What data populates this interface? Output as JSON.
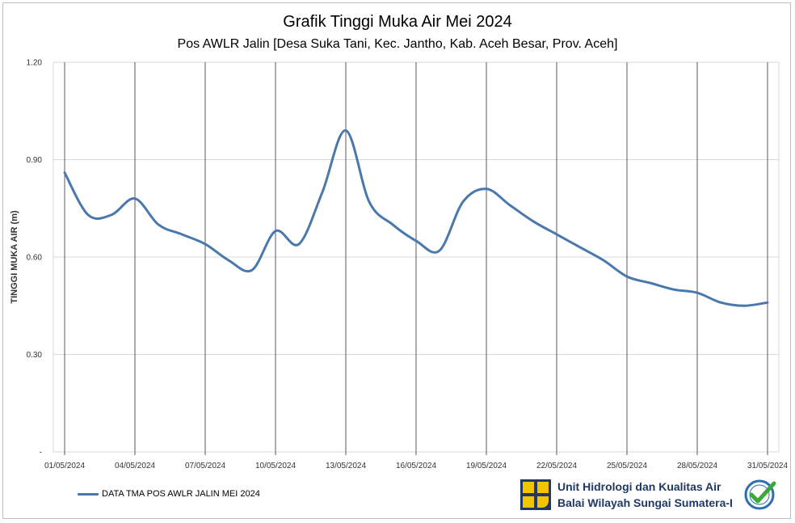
{
  "chart_data": {
    "type": "line",
    "title": "Grafik Tinggi Muka Air Mei 2024",
    "subtitle": "Pos AWLR Jalin [Desa Suka Tani, Kec. Jantho, Kab. Aceh Besar, Prov. Aceh]",
    "xlabel": "",
    "ylabel": "TINGGI MUKA AIR (m)",
    "ylim": [
      0,
      1.2
    ],
    "yticks": [
      {
        "value": 0,
        "label": "-"
      },
      {
        "value": 0.3,
        "label": "0.30"
      },
      {
        "value": 0.6,
        "label": "0.60"
      },
      {
        "value": 0.9,
        "label": "0.90"
      },
      {
        "value": 1.2,
        "label": "1.20"
      }
    ],
    "xlim": [
      "2024-05-01",
      "2024-05-31"
    ],
    "xticks": [
      "01/05/2024",
      "04/05/2024",
      "07/05/2024",
      "10/05/2024",
      "13/05/2024",
      "16/05/2024",
      "19/05/2024",
      "22/05/2024",
      "25/05/2024",
      "28/05/2024",
      "31/05/2024"
    ],
    "grid": "horizontal and vertical",
    "legend_position": "bottom-left",
    "colors": {
      "line": "#4a78ad",
      "grid_h": "#d9d9d9",
      "grid_v": "#595959"
    },
    "series": [
      {
        "name": "DATA TMA POS AWLR JALIN MEI 2024",
        "x": [
          "2024-05-01",
          "2024-05-02",
          "2024-05-03",
          "2024-05-04",
          "2024-05-05",
          "2024-05-06",
          "2024-05-07",
          "2024-05-08",
          "2024-05-09",
          "2024-05-10",
          "2024-05-11",
          "2024-05-12",
          "2024-05-13",
          "2024-05-14",
          "2024-05-15",
          "2024-05-16",
          "2024-05-17",
          "2024-05-18",
          "2024-05-19",
          "2024-05-20",
          "2024-05-21",
          "2024-05-22",
          "2024-05-23",
          "2024-05-24",
          "2024-05-25",
          "2024-05-26",
          "2024-05-27",
          "2024-05-28",
          "2024-05-29",
          "2024-05-30",
          "2024-05-31"
        ],
        "values": [
          0.86,
          0.73,
          0.73,
          0.78,
          0.7,
          0.67,
          0.64,
          0.59,
          0.56,
          0.68,
          0.64,
          0.8,
          0.99,
          0.77,
          0.7,
          0.65,
          0.62,
          0.77,
          0.81,
          0.76,
          0.71,
          0.67,
          0.63,
          0.59,
          0.54,
          0.52,
          0.5,
          0.49,
          0.46,
          0.45,
          0.46
        ]
      }
    ]
  },
  "organization": {
    "line1": "Unit Hidrologi dan Kualitas Air",
    "line2": "Balai Wilayah Sungai Sumatera-I",
    "logo_icon": "pu-logo-icon",
    "cert_icon": "iso-certified-badge-icon"
  }
}
